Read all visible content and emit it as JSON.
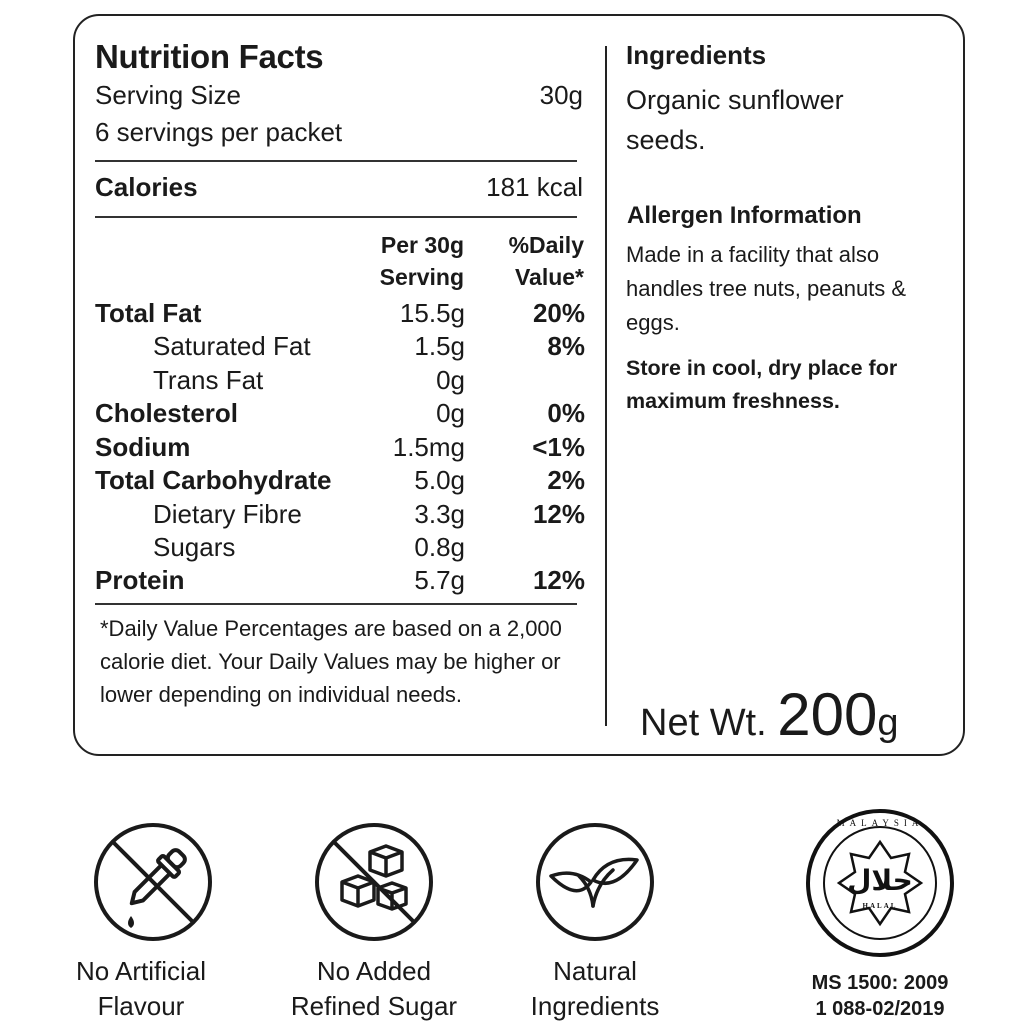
{
  "nutrition": {
    "title": "Nutrition Facts",
    "serving_size_label": "Serving Size",
    "serving_size_value": "30g",
    "servings_per_packet": "6 servings per packet",
    "calories_label": "Calories",
    "calories_value": "181 kcal",
    "col_per_serving": [
      "Per 30g",
      "Serving"
    ],
    "col_daily_value": [
      "%Daily",
      "Value*"
    ],
    "rows": [
      {
        "name": "Total Fat",
        "amount": "15.5g",
        "dv": "20%"
      },
      {
        "name": "Saturated Fat",
        "amount": "1.5g",
        "dv": "8%"
      },
      {
        "name": "Trans Fat",
        "amount": "0g",
        "dv": ""
      },
      {
        "name": "Cholesterol",
        "amount": "0g",
        "dv": "0%"
      },
      {
        "name": "Sodium",
        "amount": "1.5mg",
        "dv": "<1%"
      },
      {
        "name": "Total Carbohydrate",
        "amount": "5.0g",
        "dv": "2%"
      },
      {
        "name": "Dietary Fibre",
        "amount": "3.3g",
        "dv": "12%"
      },
      {
        "name": "Sugars",
        "amount": "0.8g",
        "dv": ""
      },
      {
        "name": "Protein",
        "amount": "5.7g",
        "dv": "12%"
      }
    ],
    "footnote": "*Daily Value Percentages are based on a 2,000 calorie diet. Your Daily Values may be higher or lower depending on individual needs."
  },
  "ingredients": {
    "heading": "Ingredients",
    "text": "Organic sunflower seeds."
  },
  "allergen": {
    "heading": "Allergen Information",
    "text": "Made in a facility that also handles tree nuts, peanuts & eggs."
  },
  "storage": "Store in cool, dry place for maximum freshness.",
  "net_weight": {
    "label": "Net Wt.",
    "number": "200",
    "unit": "g"
  },
  "badges": [
    {
      "icon": "no-dropper-icon",
      "line1": "No Artificial",
      "line2": "Flavour"
    },
    {
      "icon": "no-sugar-cubes-icon",
      "line1": "No Added",
      "line2": "Refined Sugar"
    },
    {
      "icon": "leaf-icon",
      "line1": "Natural",
      "line2": "Ingredients"
    }
  ],
  "halal": {
    "icon": "halal-logo",
    "arabic": "حلال",
    "latin": "HALAL",
    "ring": "MALAYSIA",
    "code1": "MS 1500: 2009",
    "code2": "1 088-02/2019"
  }
}
